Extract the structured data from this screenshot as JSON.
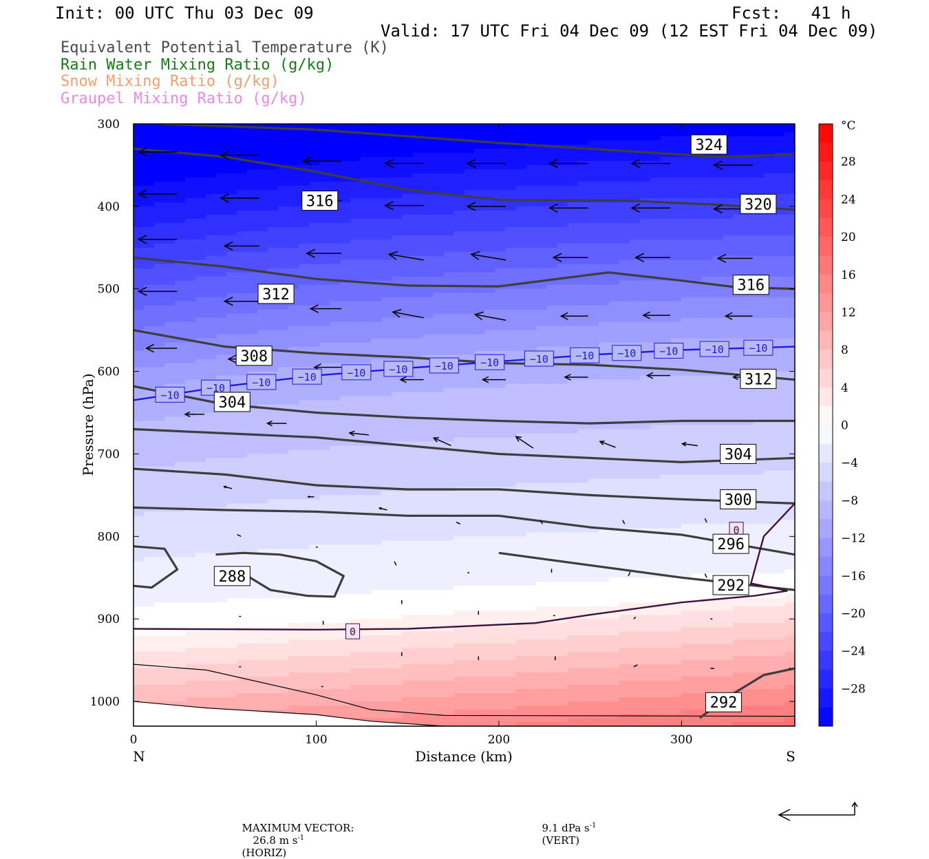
{
  "header": {
    "init": "Init: 00 UTC Thu 03 Dec 09",
    "fcst": "Fcst:   41 h",
    "valid": "Valid: 17 UTC Fri 04 Dec 09 (12 EST Fri 04 Dec 09)"
  },
  "fields": [
    {
      "label": "Equivalent Potential Temperature (K)",
      "color": "#4a4a4a"
    },
    {
      "label": "Rain Water Mixing Ratio (g/kg)",
      "color": "#1a7a1a"
    },
    {
      "label": "Snow Mixing Ratio (g/kg)",
      "color": "#f0a070"
    },
    {
      "label": "Graupel Mixing Ratio (g/kg)",
      "color": "#e58ae5"
    }
  ],
  "footer": {
    "max_vector_label": "MAXIMUM VECTOR:",
    "horiz": "26.8 m s",
    "horiz_sup": "-1",
    "horiz_tag": "(HORIZ)",
    "vert": "9.1 dPa s",
    "vert_sup": "-1",
    "vert_tag": "(VERT)"
  },
  "chart_data": {
    "type": "heatmap",
    "xlabel": "Distance (km)",
    "ylabel": "Pressure (hPa)",
    "xlim": [
      0,
      362
    ],
    "ylim": [
      1030,
      300
    ],
    "x_ticks": [
      0,
      100,
      200,
      300
    ],
    "y_ticks": [
      300,
      400,
      500,
      600,
      700,
      800,
      900,
      1000
    ],
    "end_labels": {
      "left": "N",
      "right": "S"
    },
    "colorbar": {
      "unit": "°C",
      "range": [
        -32,
        32
      ],
      "ticks": [
        28,
        24,
        20,
        16,
        12,
        8,
        4,
        0,
        -4,
        -8,
        -12,
        -16,
        -20,
        -24,
        -28
      ],
      "cold_color": "#0000ff",
      "warm_color": "#ff0000"
    },
    "temperature_isotherms": [
      {
        "value": -10,
        "color": "#1a1ae0",
        "label": "−10",
        "points": [
          [
            0,
            635
          ],
          [
            50,
            618
          ],
          [
            100,
            605
          ],
          [
            150,
            596
          ],
          [
            200,
            588
          ],
          [
            250,
            580
          ],
          [
            300,
            574
          ],
          [
            362,
            570
          ]
        ]
      },
      {
        "value": 0,
        "color": "#40103f",
        "label": "0",
        "points": [
          [
            0,
            912
          ],
          [
            100,
            913
          ],
          [
            150,
            912
          ],
          [
            220,
            905
          ],
          [
            250,
            895
          ],
          [
            300,
            880
          ],
          [
            340,
            872
          ],
          [
            358,
            866
          ],
          [
            338,
            857
          ],
          [
            345,
            800
          ],
          [
            362,
            760
          ]
        ]
      }
    ],
    "theta_e_contours": [
      {
        "value": 324,
        "points": [
          [
            15,
            300
          ],
          [
            100,
            307
          ],
          [
            200,
            323
          ],
          [
            270,
            333
          ],
          [
            320,
            340
          ],
          [
            362,
            337
          ]
        ]
      },
      {
        "value": 320,
        "points": [
          [
            0,
            330
          ],
          [
            50,
            340
          ],
          [
            100,
            358
          ],
          [
            150,
            380
          ],
          [
            200,
            392
          ],
          [
            270,
            393
          ],
          [
            320,
            398
          ],
          [
            362,
            404
          ]
        ]
      },
      {
        "value": 316,
        "points": [
          [
            0,
            462
          ],
          [
            50,
            473
          ],
          [
            100,
            488
          ],
          [
            150,
            496
          ],
          [
            200,
            497
          ],
          [
            260,
            480
          ],
          [
            300,
            490
          ],
          [
            330,
            498
          ],
          [
            362,
            500
          ]
        ]
      },
      {
        "value": 312,
        "points": [
          [
            0,
            550
          ],
          [
            50,
            570
          ],
          [
            100,
            578
          ],
          [
            150,
            583
          ],
          [
            200,
            590
          ],
          [
            250,
            592
          ],
          [
            300,
            598
          ],
          [
            362,
            610
          ]
        ]
      },
      {
        "value": 308,
        "points": [
          [
            0,
            618
          ],
          [
            50,
            640
          ],
          [
            100,
            650
          ],
          [
            150,
            656
          ],
          [
            200,
            660
          ],
          [
            250,
            663
          ],
          [
            300,
            660
          ],
          [
            362,
            660
          ]
        ]
      },
      {
        "value": 304,
        "points": [
          [
            0,
            670
          ],
          [
            50,
            675
          ],
          [
            100,
            680
          ],
          [
            150,
            690
          ],
          [
            200,
            700
          ],
          [
            250,
            705
          ],
          [
            300,
            710
          ],
          [
            362,
            705
          ]
        ]
      },
      {
        "value": 300,
        "points": [
          [
            0,
            718
          ],
          [
            50,
            725
          ],
          [
            100,
            738
          ],
          [
            150,
            743
          ],
          [
            200,
            743
          ],
          [
            250,
            750
          ],
          [
            300,
            755
          ],
          [
            362,
            760
          ]
        ]
      },
      {
        "value": 296,
        "points": [
          [
            0,
            765
          ],
          [
            50,
            768
          ],
          [
            100,
            770
          ],
          [
            150,
            775
          ],
          [
            200,
            775
          ],
          [
            250,
            789
          ],
          [
            300,
            798
          ],
          [
            362,
            822
          ]
        ]
      },
      {
        "value": 292,
        "points": [
          [
            200,
            820
          ],
          [
            250,
            835
          ],
          [
            300,
            850
          ],
          [
            362,
            865
          ]
        ]
      },
      {
        "value": 288,
        "points": [
          [
            0,
            812
          ],
          [
            17,
            815
          ],
          [
            24,
            840
          ],
          [
            10,
            862
          ],
          [
            0,
            860
          ]
        ]
      },
      {
        "value": 288,
        "points": [
          [
            45,
            822
          ],
          [
            60,
            820
          ],
          [
            80,
            822
          ],
          [
            100,
            830
          ],
          [
            115,
            848
          ],
          [
            110,
            873
          ],
          [
            95,
            872
          ],
          [
            75,
            865
          ],
          [
            55,
            838
          ]
        ]
      },
      {
        "value": 292,
        "points": [
          [
            310,
            1020
          ],
          [
            325,
            995
          ],
          [
            345,
            968
          ],
          [
            362,
            960
          ]
        ]
      }
    ],
    "theta_e_labels": [
      {
        "value": "324",
        "x": 315,
        "p": 325
      },
      {
        "value": "320",
        "x": 342,
        "p": 397
      },
      {
        "value": "316",
        "x": 102,
        "p": 393
      },
      {
        "value": "316",
        "x": 338,
        "p": 495
      },
      {
        "value": "312",
        "x": 78,
        "p": 506
      },
      {
        "value": "312",
        "x": 342,
        "p": 609
      },
      {
        "value": "308",
        "x": 66,
        "p": 581
      },
      {
        "value": "304",
        "x": 54,
        "p": 637
      },
      {
        "value": "304",
        "x": 331,
        "p": 700
      },
      {
        "value": "300",
        "x": 331,
        "p": 755
      },
      {
        "value": "296",
        "x": 327,
        "p": 809
      },
      {
        "value": "292",
        "x": 327,
        "p": 859
      },
      {
        "value": "288",
        "x": 54,
        "p": 848
      },
      {
        "value": "292",
        "x": 323,
        "p": 1001
      }
    ],
    "wind_arrows": [
      {
        "x": 5,
        "p": 334,
        "u": -20,
        "w": 0
      },
      {
        "x": 50,
        "p": 338,
        "u": -20,
        "w": 0
      },
      {
        "x": 95,
        "p": 345,
        "u": -20,
        "w": 0
      },
      {
        "x": 140,
        "p": 348,
        "u": -20,
        "w": 0
      },
      {
        "x": 185,
        "p": 348,
        "u": -20,
        "w": 0
      },
      {
        "x": 230,
        "p": 348,
        "u": -20,
        "w": 0
      },
      {
        "x": 275,
        "p": 348,
        "u": -20,
        "w": 0
      },
      {
        "x": 320,
        "p": 350,
        "u": -20,
        "w": 0
      },
      {
        "x": 5,
        "p": 385,
        "u": -20,
        "w": 0
      },
      {
        "x": 50,
        "p": 390,
        "u": -20,
        "w": 0
      },
      {
        "x": 95,
        "p": 393,
        "u": -20,
        "w": 0
      },
      {
        "x": 140,
        "p": 399,
        "u": -20,
        "w": 0
      },
      {
        "x": 185,
        "p": 400,
        "u": -20,
        "w": 0
      },
      {
        "x": 230,
        "p": 402,
        "u": -20,
        "w": 0
      },
      {
        "x": 275,
        "p": 402,
        "u": -20,
        "w": 0
      },
      {
        "x": 320,
        "p": 403,
        "u": -20,
        "w": 0
      },
      {
        "x": 5,
        "p": 440,
        "u": -20,
        "w": 0
      },
      {
        "x": 50,
        "p": 448,
        "u": -18,
        "w": 0
      },
      {
        "x": 95,
        "p": 457,
        "u": -18,
        "w": 0
      },
      {
        "x": 140,
        "p": 465,
        "u": -18,
        "w": 3
      },
      {
        "x": 185,
        "p": 465,
        "u": -18,
        "w": 3
      },
      {
        "x": 230,
        "p": 462,
        "u": -18,
        "w": 0
      },
      {
        "x": 275,
        "p": 462,
        "u": -18,
        "w": 0
      },
      {
        "x": 320,
        "p": 463,
        "u": -18,
        "w": 0
      },
      {
        "x": 5,
        "p": 503,
        "u": -20,
        "w": 0
      },
      {
        "x": 50,
        "p": 515,
        "u": -18,
        "w": 0
      },
      {
        "x": 95,
        "p": 524,
        "u": -16,
        "w": 0
      },
      {
        "x": 140,
        "p": 535,
        "u": -16,
        "w": 3
      },
      {
        "x": 185,
        "p": 538,
        "u": -16,
        "w": 3
      },
      {
        "x": 230,
        "p": 533,
        "u": -14,
        "w": 0
      },
      {
        "x": 275,
        "p": 532,
        "u": -14,
        "w": 0
      },
      {
        "x": 320,
        "p": 533,
        "u": -14,
        "w": 0
      },
      {
        "x": 5,
        "p": 572,
        "u": -16,
        "w": 0
      },
      {
        "x": 50,
        "p": 585,
        "u": -16,
        "w": 0
      },
      {
        "x": 95,
        "p": 595,
        "u": -14,
        "w": 0
      },
      {
        "x": 140,
        "p": 610,
        "u": -12,
        "w": 0
      },
      {
        "x": 185,
        "p": 610,
        "u": -12,
        "w": 0
      },
      {
        "x": 230,
        "p": 607,
        "u": -12,
        "w": 0
      },
      {
        "x": 275,
        "p": 605,
        "u": -12,
        "w": 0
      },
      {
        "x": 320,
        "p": 607,
        "u": -10,
        "w": 0
      },
      {
        "x": 20,
        "p": 652,
        "u": -10,
        "w": 0
      },
      {
        "x": 65,
        "p": 663,
        "u": -10,
        "w": 0
      },
      {
        "x": 110,
        "p": 677,
        "u": -10,
        "w": 1
      },
      {
        "x": 155,
        "p": 690,
        "u": -9,
        "w": 4
      },
      {
        "x": 200,
        "p": 693,
        "u": -9,
        "w": 6
      },
      {
        "x": 245,
        "p": 692,
        "u": -8,
        "w": 3
      },
      {
        "x": 290,
        "p": 690,
        "u": -8,
        "w": 1
      },
      {
        "x": 320,
        "p": 690,
        "u": -8,
        "w": 0
      },
      {
        "x": 35,
        "p": 742,
        "u": -4,
        "w": 1
      },
      {
        "x": 80,
        "p": 752,
        "u": -3,
        "w": 0
      },
      {
        "x": 120,
        "p": 768,
        "u": -4,
        "w": 1
      },
      {
        "x": 160,
        "p": 785,
        "u": -2,
        "w": 1
      },
      {
        "x": 205,
        "p": 785,
        "u": -1,
        "w": 2
      },
      {
        "x": 250,
        "p": 785,
        "u": -1,
        "w": 2
      },
      {
        "x": 295,
        "p": 783,
        "u": -1,
        "w": 2
      },
      {
        "x": 40,
        "p": 800,
        "u": -2,
        "w": 1
      },
      {
        "x": 82,
        "p": 813,
        "u": -1,
        "w": 0
      },
      {
        "x": 125,
        "p": 835,
        "u": -1,
        "w": 2
      },
      {
        "x": 165,
        "p": 844,
        "u": -1,
        "w": 0
      },
      {
        "x": 210,
        "p": 844,
        "u": 0,
        "w": 2
      },
      {
        "x": 252,
        "p": 848,
        "u": 1,
        "w": 2
      },
      {
        "x": 295,
        "p": 850,
        "u": -1,
        "w": 2
      },
      {
        "x": 40,
        "p": 897,
        "u": -1,
        "w": 0
      },
      {
        "x": 85,
        "p": 907,
        "u": 0,
        "w": 2
      },
      {
        "x": 128,
        "p": 882,
        "u": 0,
        "w": 2
      },
      {
        "x": 170,
        "p": 895,
        "u": 0,
        "w": 2
      },
      {
        "x": 212,
        "p": 896,
        "u": -1,
        "w": 0
      },
      {
        "x": 255,
        "p": 900,
        "u": 1,
        "w": 1
      },
      {
        "x": 297,
        "p": 900,
        "u": 1,
        "w": 0
      },
      {
        "x": 40,
        "p": 958,
        "u": -1,
        "w": 0
      },
      {
        "x": 85,
        "p": 982,
        "u": -1,
        "w": 0
      },
      {
        "x": 128,
        "p": 945,
        "u": 0,
        "w": 2
      },
      {
        "x": 170,
        "p": 950,
        "u": 0,
        "w": 2
      },
      {
        "x": 212,
        "p": 950,
        "u": 0,
        "w": 2
      },
      {
        "x": 255,
        "p": 958,
        "u": 2,
        "w": 1
      },
      {
        "x": 297,
        "p": 960,
        "u": 2,
        "w": 0
      },
      {
        "x": 340,
        "p": 960,
        "u": 1,
        "w": 0
      }
    ]
  }
}
